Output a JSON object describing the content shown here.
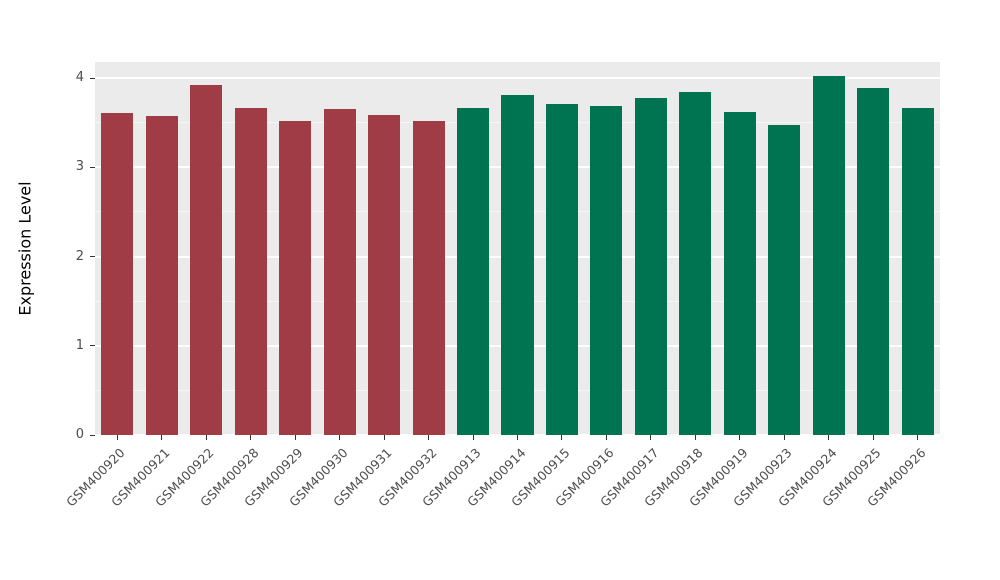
{
  "chart_data": {
    "type": "bar",
    "title": "",
    "xlabel": "",
    "ylabel": "Expression Level",
    "ylim": [
      0,
      4.18
    ],
    "yticks": [
      0,
      1,
      2,
      3,
      4
    ],
    "grid": true,
    "legend": "none",
    "panel_bg": "#EBEBEB",
    "grid_color": "#FFFFFF",
    "bar_group_colors": {
      "left-group": "#A03C46",
      "right-group": "#007350"
    },
    "bars": [
      {
        "label": "GSM400920",
        "value": 3.61,
        "color": "#A03C46"
      },
      {
        "label": "GSM400921",
        "value": 3.58,
        "color": "#A03C46"
      },
      {
        "label": "GSM400922",
        "value": 3.92,
        "color": "#A03C46"
      },
      {
        "label": "GSM400928",
        "value": 3.67,
        "color": "#A03C46"
      },
      {
        "label": "GSM400929",
        "value": 3.52,
        "color": "#A03C46"
      },
      {
        "label": "GSM400930",
        "value": 3.65,
        "color": "#A03C46"
      },
      {
        "label": "GSM400931",
        "value": 3.59,
        "color": "#A03C46"
      },
      {
        "label": "GSM400932",
        "value": 3.52,
        "color": "#A03C46"
      },
      {
        "label": "GSM400913",
        "value": 3.66,
        "color": "#007350"
      },
      {
        "label": "GSM400914",
        "value": 3.81,
        "color": "#007350"
      },
      {
        "label": "GSM400915",
        "value": 3.71,
        "color": "#007350"
      },
      {
        "label": "GSM400916",
        "value": 3.69,
        "color": "#007350"
      },
      {
        "label": "GSM400917",
        "value": 3.78,
        "color": "#007350"
      },
      {
        "label": "GSM400918",
        "value": 3.84,
        "color": "#007350"
      },
      {
        "label": "GSM400919",
        "value": 3.62,
        "color": "#007350"
      },
      {
        "label": "GSM400923",
        "value": 3.47,
        "color": "#007350"
      },
      {
        "label": "GSM400924",
        "value": 4.02,
        "color": "#007350"
      },
      {
        "label": "GSM400925",
        "value": 3.89,
        "color": "#007350"
      },
      {
        "label": "GSM400926",
        "value": 3.66,
        "color": "#007350"
      }
    ]
  }
}
